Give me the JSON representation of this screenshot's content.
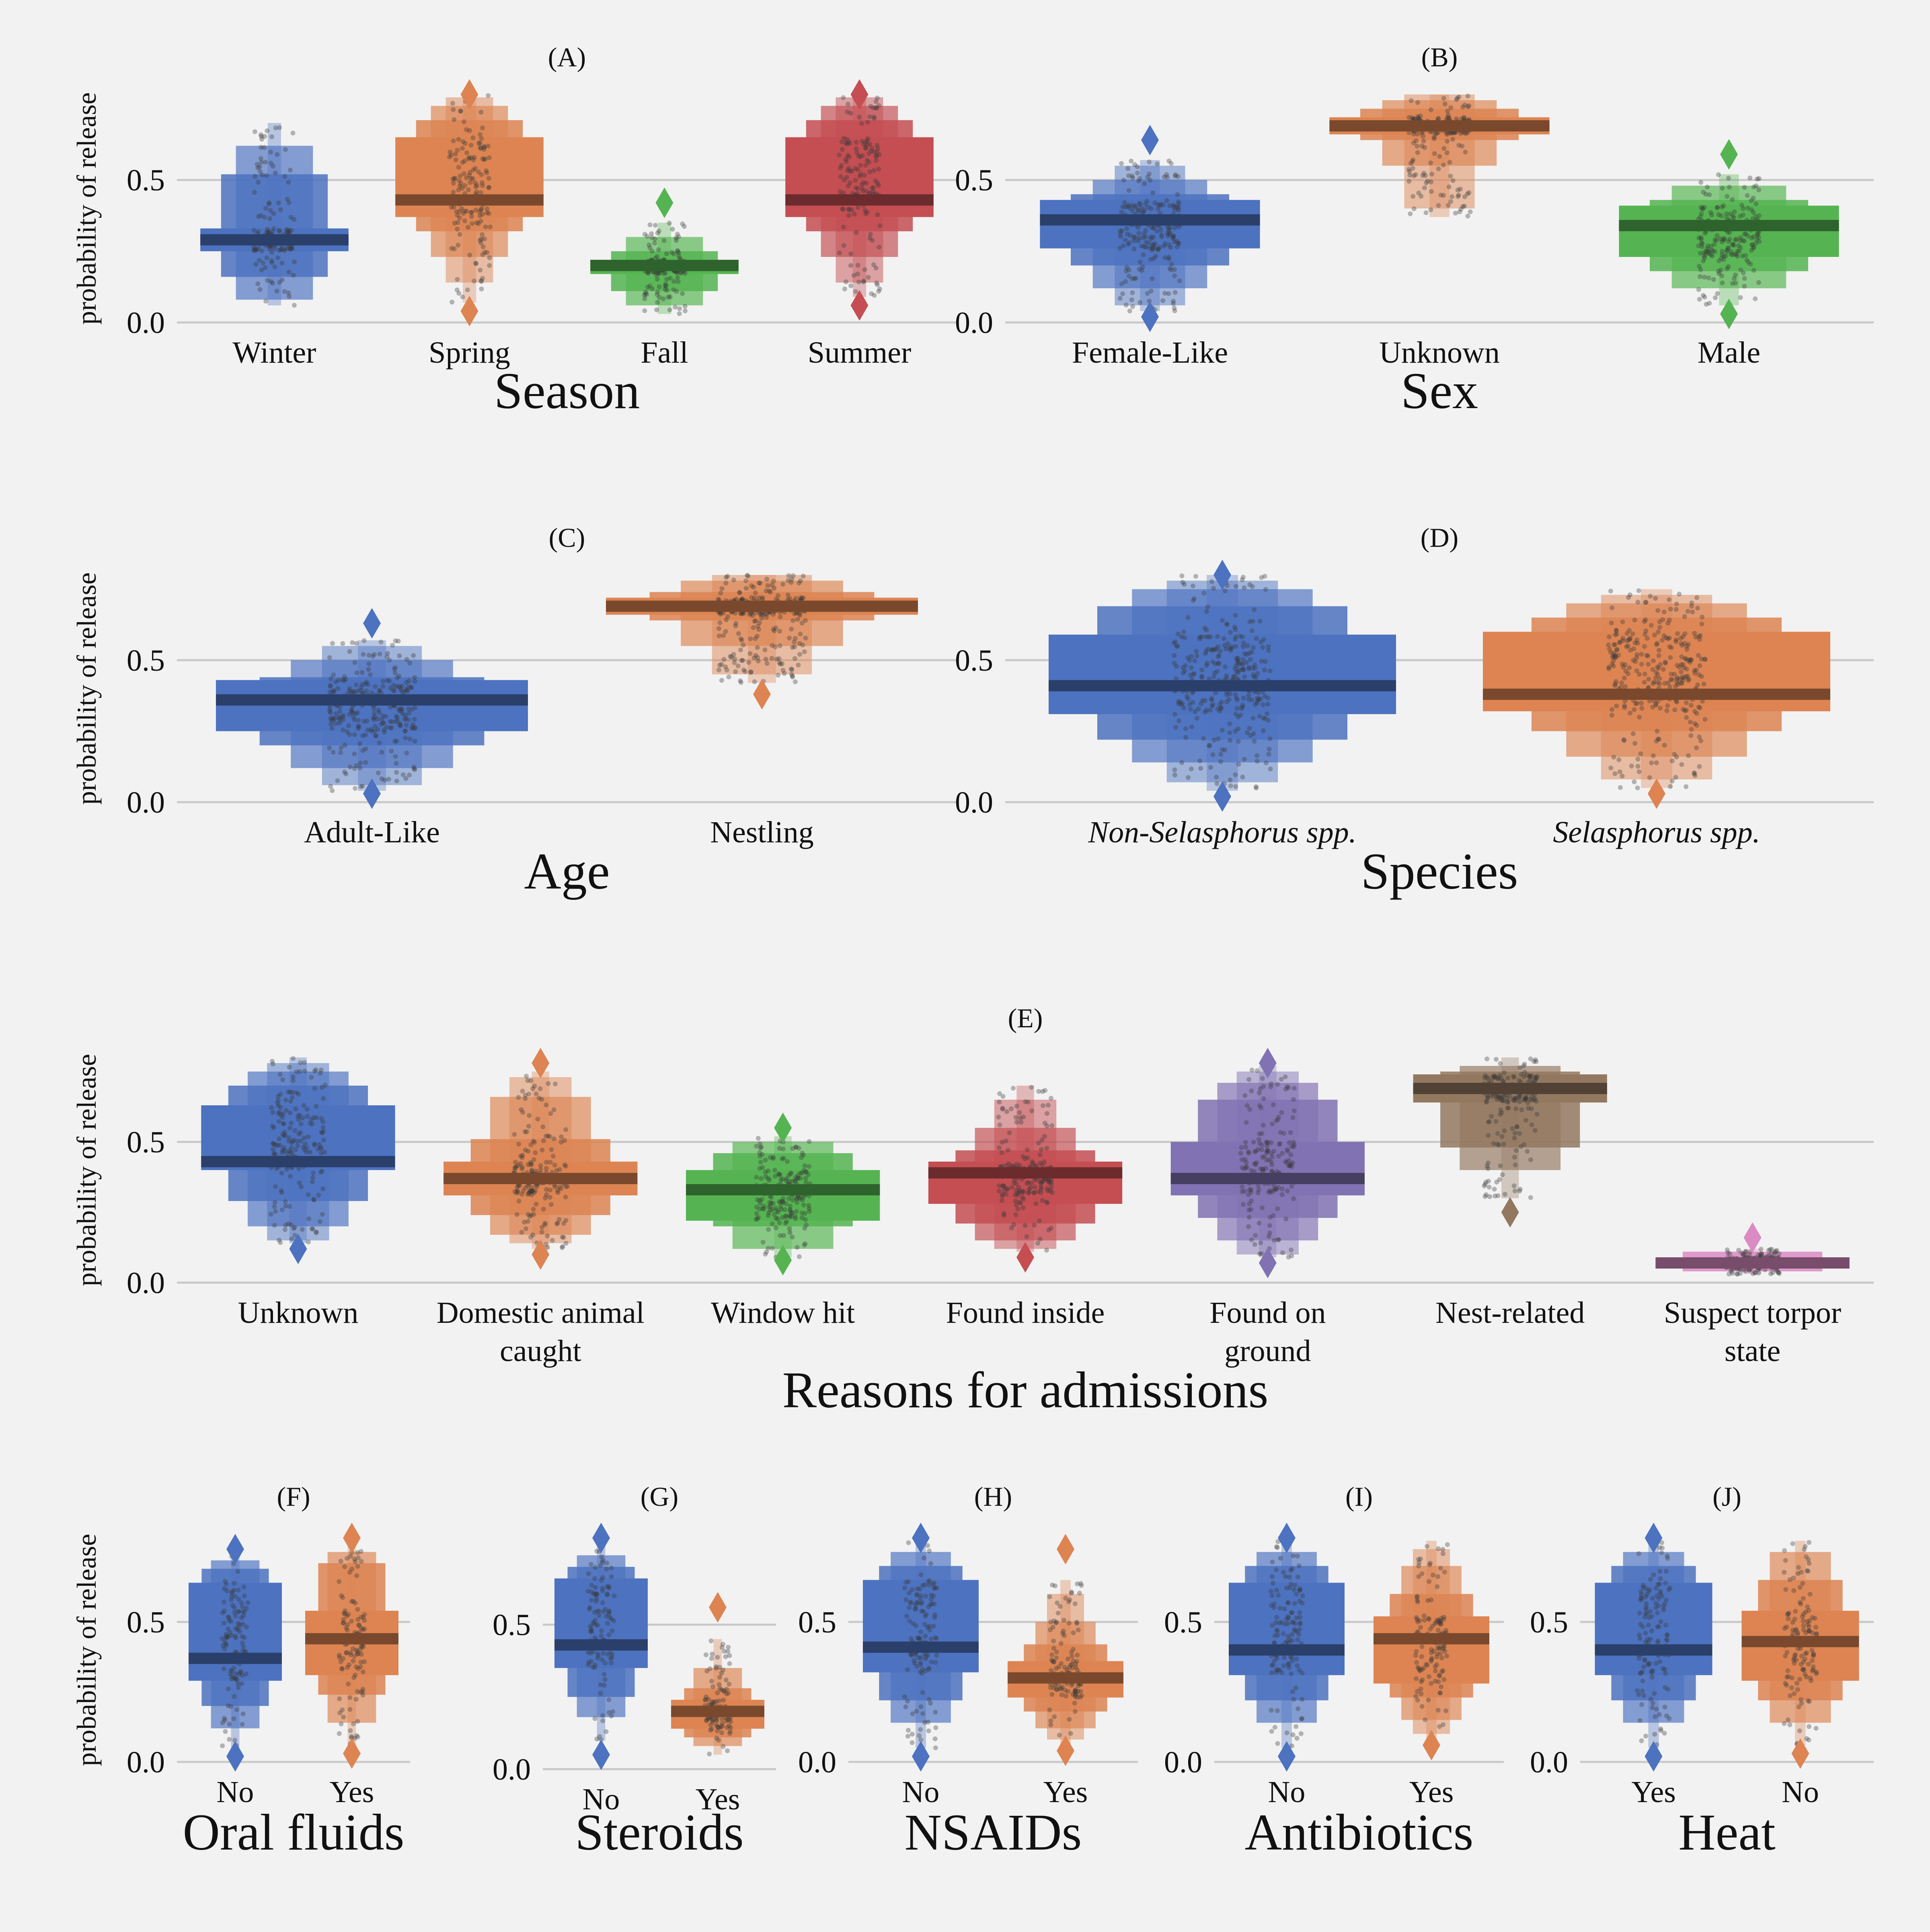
{
  "chart_data": [
    {
      "type": "boxen",
      "panel": "(A)",
      "xlabel": "Season",
      "ylabel": "probability of release",
      "ylim": [
        0,
        0.8
      ],
      "yticks": [
        0.0,
        0.5
      ],
      "grid": "horizontal",
      "categories": [
        "Winter",
        "Spring",
        "Fall",
        "Summer"
      ],
      "colors": [
        "#4c72c0",
        "#dd8452",
        "#55b451",
        "#c44e52"
      ],
      "series": [
        {
          "category": "Winter",
          "median": 0.29,
          "q1": 0.25,
          "q3": 0.33,
          "letters": [
            [
              0.16,
              0.52
            ],
            [
              0.08,
              0.62
            ]
          ],
          "whisker": [
            0.06,
            0.7
          ],
          "outliers": []
        },
        {
          "category": "Spring",
          "median": 0.43,
          "q1": 0.37,
          "q3": 0.65,
          "letters": [
            [
              0.32,
              0.71
            ],
            [
              0.23,
              0.76
            ],
            [
              0.14,
              0.79
            ]
          ],
          "whisker": [
            0.07,
            0.8
          ],
          "outliers": [
            0.04,
            0.8
          ]
        },
        {
          "category": "Fall",
          "median": 0.2,
          "q1": 0.17,
          "q3": 0.22,
          "letters": [
            [
              0.11,
              0.25
            ],
            [
              0.06,
              0.3
            ]
          ],
          "whisker": [
            0.03,
            0.35
          ],
          "outliers": [
            0.42
          ]
        },
        {
          "category": "Summer",
          "median": 0.43,
          "q1": 0.37,
          "q3": 0.65,
          "letters": [
            [
              0.32,
              0.71
            ],
            [
              0.23,
              0.76
            ],
            [
              0.14,
              0.79
            ]
          ],
          "whisker": [
            0.09,
            0.8
          ],
          "outliers": [
            0.06,
            0.8
          ]
        }
      ]
    },
    {
      "type": "boxen",
      "panel": "(B)",
      "xlabel": "Sex",
      "ylabel": "",
      "ylim": [
        0,
        0.8
      ],
      "yticks": [
        0.0,
        0.5
      ],
      "grid": "horizontal",
      "categories": [
        "Female-Like",
        "Unknown",
        "Male"
      ],
      "colors": [
        "#4c72c0",
        "#dd8452",
        "#55b451"
      ],
      "series": [
        {
          "category": "Female-Like",
          "median": 0.36,
          "q1": 0.26,
          "q3": 0.43,
          "letters": [
            [
              0.2,
              0.45
            ],
            [
              0.12,
              0.5
            ],
            [
              0.06,
              0.55
            ]
          ],
          "whisker": [
            0.04,
            0.57
          ],
          "outliers": [
            0.02,
            0.64
          ]
        },
        {
          "category": "Unknown",
          "median": 0.69,
          "q1": 0.66,
          "q3": 0.72,
          "letters": [
            [
              0.64,
              0.75
            ],
            [
              0.55,
              0.78
            ],
            [
              0.4,
              0.8
            ]
          ],
          "whisker": [
            0.37,
            0.8
          ],
          "outliers": []
        },
        {
          "category": "Male",
          "median": 0.34,
          "q1": 0.23,
          "q3": 0.41,
          "letters": [
            [
              0.18,
              0.43
            ],
            [
              0.12,
              0.48
            ]
          ],
          "whisker": [
            0.06,
            0.52
          ],
          "outliers": [
            0.03,
            0.59
          ]
        }
      ]
    },
    {
      "type": "boxen",
      "panel": "(C)",
      "xlabel": "Age",
      "ylabel": "probability of release",
      "ylim": [
        0,
        0.8
      ],
      "yticks": [
        0.0,
        0.5
      ],
      "grid": "horizontal",
      "categories": [
        "Adult-Like",
        "Nestling"
      ],
      "colors": [
        "#4c72c0",
        "#dd8452"
      ],
      "series": [
        {
          "category": "Adult-Like",
          "median": 0.36,
          "q1": 0.25,
          "q3": 0.43,
          "letters": [
            [
              0.2,
              0.44
            ],
            [
              0.12,
              0.5
            ],
            [
              0.06,
              0.55
            ]
          ],
          "whisker": [
            0.04,
            0.57
          ],
          "outliers": [
            0.03,
            0.63
          ]
        },
        {
          "category": "Nestling",
          "median": 0.69,
          "q1": 0.66,
          "q3": 0.72,
          "letters": [
            [
              0.64,
              0.74
            ],
            [
              0.55,
              0.78
            ],
            [
              0.45,
              0.8
            ]
          ],
          "whisker": [
            0.42,
            0.8
          ],
          "outliers": [
            0.38
          ]
        }
      ]
    },
    {
      "type": "boxen",
      "panel": "(D)",
      "xlabel": "Species",
      "ylabel": "",
      "ylim": [
        0,
        0.8
      ],
      "yticks": [
        0.0,
        0.5
      ],
      "grid": "horizontal",
      "categories": [
        "Non-Selasphorus spp.",
        "Selasphorus spp."
      ],
      "tick_style": "italic",
      "colors": [
        "#4c72c0",
        "#dd8452"
      ],
      "series": [
        {
          "category": "Non-Selasphorus spp.",
          "median": 0.41,
          "q1": 0.31,
          "q3": 0.59,
          "letters": [
            [
              0.22,
              0.69
            ],
            [
              0.14,
              0.75
            ],
            [
              0.07,
              0.78
            ]
          ],
          "whisker": [
            0.04,
            0.8
          ],
          "outliers": [
            0.02,
            0.8
          ]
        },
        {
          "category": "Selasphorus spp.",
          "median": 0.38,
          "q1": 0.32,
          "q3": 0.6,
          "letters": [
            [
              0.25,
              0.65
            ],
            [
              0.16,
              0.7
            ],
            [
              0.08,
              0.73
            ]
          ],
          "whisker": [
            0.05,
            0.75
          ],
          "outliers": [
            0.03
          ]
        }
      ]
    },
    {
      "type": "boxen",
      "panel": "(E)",
      "xlabel": "Reasons for admissions",
      "ylabel": "probability of release",
      "ylim": [
        0,
        0.8
      ],
      "yticks": [
        0.0,
        0.5
      ],
      "grid": "horizontal",
      "categories": [
        "Unknown",
        "Domestic animal caught",
        "Window hit",
        "Found inside",
        "Found on ground",
        "Nest-related",
        "Suspect torpor state"
      ],
      "tick_lines": [
        [
          "Unknown"
        ],
        [
          "Domestic animal",
          "caught"
        ],
        [
          "Window hit"
        ],
        [
          "Found inside"
        ],
        [
          "Found on",
          "ground"
        ],
        [
          "Nest-related"
        ],
        [
          "Suspect torpor",
          "state"
        ]
      ],
      "colors": [
        "#4c72c0",
        "#dd8452",
        "#55b451",
        "#c44e52",
        "#8172b3",
        "#937860",
        "#da8bc3"
      ],
      "series": [
        {
          "category": "Unknown",
          "median": 0.43,
          "q1": 0.4,
          "q3": 0.63,
          "letters": [
            [
              0.29,
              0.7
            ],
            [
              0.2,
              0.75
            ],
            [
              0.15,
              0.78
            ]
          ],
          "whisker": [
            0.14,
            0.8
          ],
          "outliers": [
            0.12
          ]
        },
        {
          "category": "Domestic animal caught",
          "median": 0.37,
          "q1": 0.31,
          "q3": 0.43,
          "letters": [
            [
              0.24,
              0.51
            ],
            [
              0.17,
              0.66
            ],
            [
              0.14,
              0.73
            ]
          ],
          "whisker": [
            0.12,
            0.75
          ],
          "outliers": [
            0.1,
            0.78
          ]
        },
        {
          "category": "Window hit",
          "median": 0.33,
          "q1": 0.22,
          "q3": 0.4,
          "letters": [
            [
              0.2,
              0.46
            ],
            [
              0.12,
              0.5
            ]
          ],
          "whisker": [
            0.09,
            0.52
          ],
          "outliers": [
            0.08,
            0.55
          ]
        },
        {
          "category": "Found inside",
          "median": 0.39,
          "q1": 0.28,
          "q3": 0.43,
          "letters": [
            [
              0.21,
              0.47
            ],
            [
              0.15,
              0.55
            ],
            [
              0.12,
              0.65
            ]
          ],
          "whisker": [
            0.11,
            0.7
          ],
          "outliers": [
            0.09
          ]
        },
        {
          "category": "Found on ground",
          "median": 0.37,
          "q1": 0.31,
          "q3": 0.5,
          "letters": [
            [
              0.23,
              0.65
            ],
            [
              0.15,
              0.71
            ],
            [
              0.1,
              0.75
            ]
          ],
          "whisker": [
            0.09,
            0.77
          ],
          "outliers": [
            0.07,
            0.78
          ]
        },
        {
          "category": "Nest-related",
          "median": 0.69,
          "q1": 0.64,
          "q3": 0.74,
          "letters": [
            [
              0.48,
              0.75
            ],
            [
              0.4,
              0.77
            ]
          ],
          "whisker": [
            0.3,
            0.8
          ],
          "outliers": [
            0.25
          ]
        },
        {
          "category": "Suspect torpor state",
          "median": 0.07,
          "q1": 0.05,
          "q3": 0.09,
          "letters": [
            [
              0.04,
              0.11
            ]
          ],
          "whisker": [
            0.03,
            0.12
          ],
          "outliers": [
            0.16
          ]
        }
      ]
    },
    {
      "type": "boxen",
      "panel": "(F)",
      "xlabel": "Oral fluids",
      "ylabel": "probability of release",
      "ylim": [
        0,
        0.8
      ],
      "yticks": [
        0.0,
        0.5
      ],
      "grid": "horizontal",
      "categories": [
        "No",
        "Yes"
      ],
      "colors": [
        "#4c72c0",
        "#dd8452"
      ],
      "series": [
        {
          "category": "No",
          "median": 0.37,
          "q1": 0.29,
          "q3": 0.64,
          "letters": [
            [
              0.2,
              0.69
            ],
            [
              0.12,
              0.72
            ]
          ],
          "whisker": [
            0.04,
            0.75
          ],
          "outliers": [
            0.02,
            0.76
          ]
        },
        {
          "category": "Yes",
          "median": 0.44,
          "q1": 0.31,
          "q3": 0.54,
          "letters": [
            [
              0.24,
              0.71
            ],
            [
              0.14,
              0.75
            ]
          ],
          "whisker": [
            0.05,
            0.79
          ],
          "outliers": [
            0.03,
            0.8
          ]
        }
      ]
    },
    {
      "type": "boxen",
      "panel": "(G)",
      "xlabel": "Steroids",
      "ylabel": "",
      "ylim": [
        0,
        0.8
      ],
      "yticks": [
        0.0,
        0.5
      ],
      "grid": "horizontal",
      "categories": [
        "No",
        "Yes"
      ],
      "colors": [
        "#4c72c0",
        "#dd8452"
      ],
      "series": [
        {
          "category": "No",
          "median": 0.43,
          "q1": 0.35,
          "q3": 0.66,
          "letters": [
            [
              0.25,
              0.7
            ],
            [
              0.18,
              0.74
            ]
          ],
          "whisker": [
            0.1,
            0.78
          ],
          "outliers": [
            0.05,
            0.8
          ]
        },
        {
          "category": "Yes",
          "median": 0.2,
          "q1": 0.14,
          "q3": 0.24,
          "letters": [
            [
              0.11,
              0.28
            ],
            [
              0.08,
              0.35
            ]
          ],
          "whisker": [
            0.05,
            0.45
          ],
          "outliers": [
            0.56
          ]
        }
      ]
    },
    {
      "type": "boxen",
      "panel": "(H)",
      "xlabel": "NSAIDs",
      "ylabel": "",
      "ylim": [
        0,
        0.8
      ],
      "yticks": [
        0.0,
        0.5
      ],
      "grid": "horizontal",
      "categories": [
        "No",
        "Yes"
      ],
      "colors": [
        "#4c72c0",
        "#dd8452"
      ],
      "series": [
        {
          "category": "No",
          "median": 0.41,
          "q1": 0.32,
          "q3": 0.65,
          "letters": [
            [
              0.22,
              0.7
            ],
            [
              0.14,
              0.75
            ]
          ],
          "whisker": [
            0.05,
            0.79
          ],
          "outliers": [
            0.02,
            0.8
          ]
        },
        {
          "category": "Yes",
          "median": 0.3,
          "q1": 0.23,
          "q3": 0.36,
          "letters": [
            [
              0.18,
              0.42
            ],
            [
              0.12,
              0.5
            ],
            [
              0.08,
              0.6
            ]
          ],
          "whisker": [
            0.06,
            0.65
          ],
          "outliers": [
            0.04,
            0.76
          ]
        }
      ]
    },
    {
      "type": "boxen",
      "panel": "(I)",
      "xlabel": "Antibiotics",
      "ylabel": "",
      "ylim": [
        0,
        0.8
      ],
      "yticks": [
        0.0,
        0.5
      ],
      "grid": "horizontal",
      "categories": [
        "No",
        "Yes"
      ],
      "colors": [
        "#4c72c0",
        "#dd8452"
      ],
      "series": [
        {
          "category": "No",
          "median": 0.4,
          "q1": 0.31,
          "q3": 0.64,
          "letters": [
            [
              0.22,
              0.7
            ],
            [
              0.14,
              0.75
            ]
          ],
          "whisker": [
            0.05,
            0.79
          ],
          "outliers": [
            0.02,
            0.8
          ]
        },
        {
          "category": "Yes",
          "median": 0.44,
          "q1": 0.28,
          "q3": 0.52,
          "letters": [
            [
              0.23,
              0.6
            ],
            [
              0.15,
              0.7
            ],
            [
              0.1,
              0.76
            ]
          ],
          "whisker": [
            0.08,
            0.79
          ],
          "outliers": [
            0.06
          ]
        }
      ]
    },
    {
      "type": "boxen",
      "panel": "(J)",
      "xlabel": "Heat",
      "ylabel": "",
      "ylim": [
        0,
        0.8
      ],
      "yticks": [
        0.0,
        0.5
      ],
      "grid": "horizontal",
      "categories": [
        "Yes",
        "No"
      ],
      "colors": [
        "#4c72c0",
        "#dd8452"
      ],
      "series": [
        {
          "category": "Yes",
          "median": 0.4,
          "q1": 0.31,
          "q3": 0.64,
          "letters": [
            [
              0.22,
              0.7
            ],
            [
              0.14,
              0.75
            ]
          ],
          "whisker": [
            0.05,
            0.79
          ],
          "outliers": [
            0.02,
            0.8
          ]
        },
        {
          "category": "No",
          "median": 0.43,
          "q1": 0.29,
          "q3": 0.54,
          "letters": [
            [
              0.22,
              0.65
            ],
            [
              0.14,
              0.75
            ]
          ],
          "whisker": [
            0.06,
            0.79
          ],
          "outliers": [
            0.03
          ]
        }
      ]
    }
  ]
}
